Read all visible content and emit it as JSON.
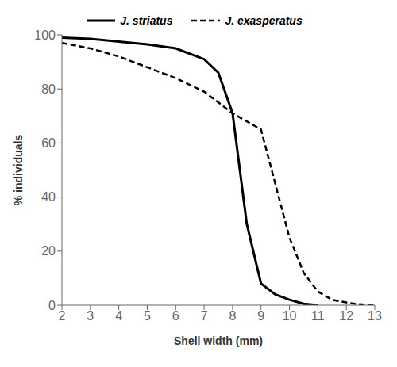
{
  "chart_data": {
    "type": "line",
    "x_label": "Shell width (mm)",
    "y_label": "% individuals",
    "xlim": [
      2,
      13
    ],
    "ylim": [
      0,
      100
    ],
    "xticks": [
      2,
      3,
      4,
      5,
      6,
      7,
      8,
      9,
      10,
      11,
      12,
      13
    ],
    "yticks": [
      0,
      20,
      40,
      60,
      80,
      100
    ],
    "grid": false,
    "legend": "top",
    "series": [
      {
        "name": "J. striatus",
        "color": "#000000",
        "line_style": "solid",
        "x": [
          2,
          3,
          4,
          5,
          6,
          7,
          7.5,
          8,
          8.5,
          9,
          9.5,
          10,
          10.5,
          11
        ],
        "values": [
          99,
          98.5,
          97.5,
          96.5,
          95,
          91,
          86,
          71,
          30,
          8,
          4,
          2,
          0.5,
          0
        ]
      },
      {
        "name": "J. exasperatus",
        "color": "#000000",
        "line_style": "dashed",
        "x": [
          2,
          3,
          4,
          5,
          6,
          7,
          7.5,
          8,
          8.5,
          9,
          9.5,
          10,
          10.5,
          11,
          11.5,
          12,
          12.3,
          13
        ],
        "values": [
          97,
          95,
          92,
          88,
          84,
          79,
          75,
          71,
          68,
          65,
          45,
          25,
          12,
          5,
          2,
          1,
          0.5,
          0
        ]
      }
    ]
  }
}
